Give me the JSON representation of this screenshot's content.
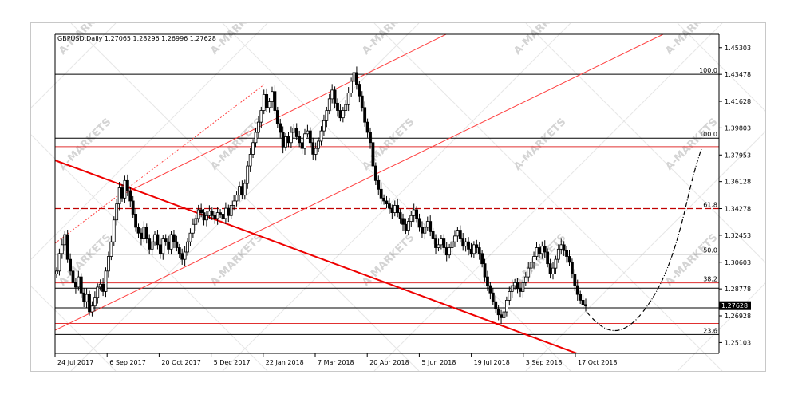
{
  "chart_data": {
    "type": "candlestick",
    "symbol_header": "GBPUSD,Daily  1.27065 1.28296 1.26996 1.27628",
    "current_price": "1.27628",
    "x_ticks": [
      "24 Jul 2017",
      "6 Sep 2017",
      "20 Oct 2017",
      "5 Dec 2017",
      "22 Jan 2018",
      "7 Mar 2018",
      "20 Apr 2018",
      "5 Jun 2018",
      "19 Jul 2018",
      "3 Sep 2018",
      "17 Oct 2018"
    ],
    "y_ticks": [
      "1.45303",
      "1.43478",
      "1.41628",
      "1.39803",
      "1.37953",
      "1.36128",
      "1.34278",
      "1.32453",
      "1.30603",
      "1.28778",
      "1.26928",
      "1.25103"
    ],
    "ylim": [
      1.2436,
      1.4622
    ],
    "candles_close": [
      1.3,
      1.312,
      1.318,
      1.325,
      1.308,
      1.3,
      1.292,
      1.289,
      1.296,
      1.285,
      1.279,
      1.284,
      1.272,
      1.276,
      1.282,
      1.289,
      1.291,
      1.286,
      1.3,
      1.31,
      1.32,
      1.335,
      1.346,
      1.357,
      1.35,
      1.362,
      1.355,
      1.348,
      1.339,
      1.33,
      1.326,
      1.322,
      1.33,
      1.322,
      1.315,
      1.32,
      1.325,
      1.318,
      1.312,
      1.322,
      1.32,
      1.315,
      1.325,
      1.32,
      1.316,
      1.312,
      1.308,
      1.313,
      1.32,
      1.326,
      1.332,
      1.336,
      1.342,
      1.34,
      1.335,
      1.338,
      1.341,
      1.338,
      1.336,
      1.34,
      1.339,
      1.336,
      1.343,
      1.338,
      1.345,
      1.348,
      1.352,
      1.358,
      1.352,
      1.36,
      1.372,
      1.38,
      1.388,
      1.395,
      1.402,
      1.41,
      1.421,
      1.412,
      1.416,
      1.423,
      1.41,
      1.401,
      1.395,
      1.385,
      1.392,
      1.388,
      1.395,
      1.398,
      1.392,
      1.388,
      1.384,
      1.394,
      1.396,
      1.388,
      1.38,
      1.384,
      1.389,
      1.396,
      1.403,
      1.41,
      1.418,
      1.424,
      1.415,
      1.41,
      1.405,
      1.41,
      1.414,
      1.422,
      1.43,
      1.436,
      1.428,
      1.42,
      1.412,
      1.402,
      1.395,
      1.388,
      1.372,
      1.362,
      1.356,
      1.35,
      1.348,
      1.346,
      1.343,
      1.34,
      1.345,
      1.34,
      1.336,
      1.332,
      1.328,
      1.334,
      1.338,
      1.342,
      1.336,
      1.33,
      1.326,
      1.33,
      1.334,
      1.327,
      1.322,
      1.316,
      1.318,
      1.322,
      1.316,
      1.311,
      1.316,
      1.32,
      1.324,
      1.328,
      1.322,
      1.317,
      1.32,
      1.315,
      1.312,
      1.318,
      1.316,
      1.312,
      1.305,
      1.296,
      1.29,
      1.285,
      1.279,
      1.274,
      1.27,
      1.268,
      1.272,
      1.28,
      1.286,
      1.29,
      1.292,
      1.288,
      1.286,
      1.292,
      1.296,
      1.302,
      1.306,
      1.31,
      1.316,
      1.312,
      1.317,
      1.313,
      1.305,
      1.298,
      1.302,
      1.308,
      1.315,
      1.318,
      1.314,
      1.31,
      1.306,
      1.298,
      1.29,
      1.284,
      1.28,
      1.277,
      1.276
    ],
    "levels": [
      {
        "label": "100.0",
        "value": 1.43478,
        "color": "#000000",
        "style": "solid"
      },
      {
        "label": "100.0",
        "value": 1.39103,
        "color": "#000000",
        "style": "solid"
      },
      {
        "label": "",
        "value": 1.3852,
        "color": "#e03030",
        "style": "solid"
      },
      {
        "label": "61.8",
        "value": 1.34278,
        "color": "#c00000",
        "style": "dashed"
      },
      {
        "label": "50.0",
        "value": 1.31158,
        "color": "#000000",
        "style": "solid"
      },
      {
        "label": "38.2",
        "value": 1.29188,
        "color": "#e03030",
        "style": "solid"
      },
      {
        "label": "",
        "value": 1.28828,
        "color": "#000000",
        "style": "solid"
      },
      {
        "label": "",
        "value": 1.27478,
        "color": "#000000",
        "style": "solid"
      },
      {
        "label": "",
        "value": 1.26408,
        "color": "#e03030",
        "style": "solid"
      },
      {
        "label": "23.6",
        "value": 1.25653,
        "color": "#000000",
        "style": "solid"
      }
    ],
    "watermark": "A-MARKETS",
    "colors": {
      "candles": "#000000",
      "trend": "#ff0000",
      "grid_lines": "#000000"
    },
    "grid": false
  }
}
